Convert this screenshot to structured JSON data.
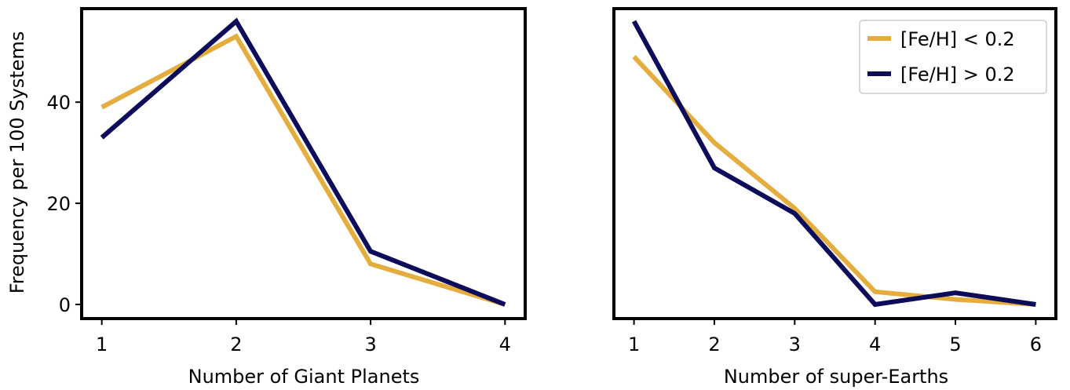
{
  "colors": {
    "low_metallicity": "#e5ad3e",
    "high_metallicity": "#0c0c5a"
  },
  "chart_data": [
    {
      "type": "line",
      "xlabel": "Number of Giant Planets",
      "ylabel": "Frequency per 100 Systems",
      "x": [
        1,
        2,
        3,
        4
      ],
      "xticks": [
        "1",
        "2",
        "3",
        "4"
      ],
      "yticks": [
        "0",
        "20",
        "40"
      ],
      "xlim": [
        0.85,
        4.15
      ],
      "ylim": [
        -2.8,
        58.5
      ],
      "series": [
        {
          "name": "[Fe/H] < 0.2",
          "color": "#e5ad3e",
          "values": [
            39,
            53,
            8,
            0
          ]
        },
        {
          "name": "[Fe/H] > 0.2",
          "color": "#0c0c5a",
          "values": [
            33,
            56,
            10.5,
            0
          ]
        }
      ]
    },
    {
      "type": "line",
      "xlabel": "Number of super-Earths",
      "ylabel": "",
      "x": [
        1,
        2,
        3,
        4,
        5,
        6
      ],
      "xticks": [
        "1",
        "2",
        "3",
        "4",
        "5",
        "6"
      ],
      "yticks": [],
      "xlim": [
        0.75,
        6.25
      ],
      "ylim": [
        -2.8,
        58.5
      ],
      "legend": {
        "placement": "top-right",
        "entries": [
          "[Fe/H] < 0.2",
          "[Fe/H] > 0.2"
        ]
      },
      "series": [
        {
          "name": "[Fe/H] < 0.2",
          "color": "#e5ad3e",
          "values": [
            49,
            32,
            19,
            2.5,
            1,
            0
          ]
        },
        {
          "name": "[Fe/H] > 0.2",
          "color": "#0c0c5a",
          "values": [
            56,
            27,
            18,
            0,
            2.3,
            0
          ]
        }
      ]
    }
  ]
}
